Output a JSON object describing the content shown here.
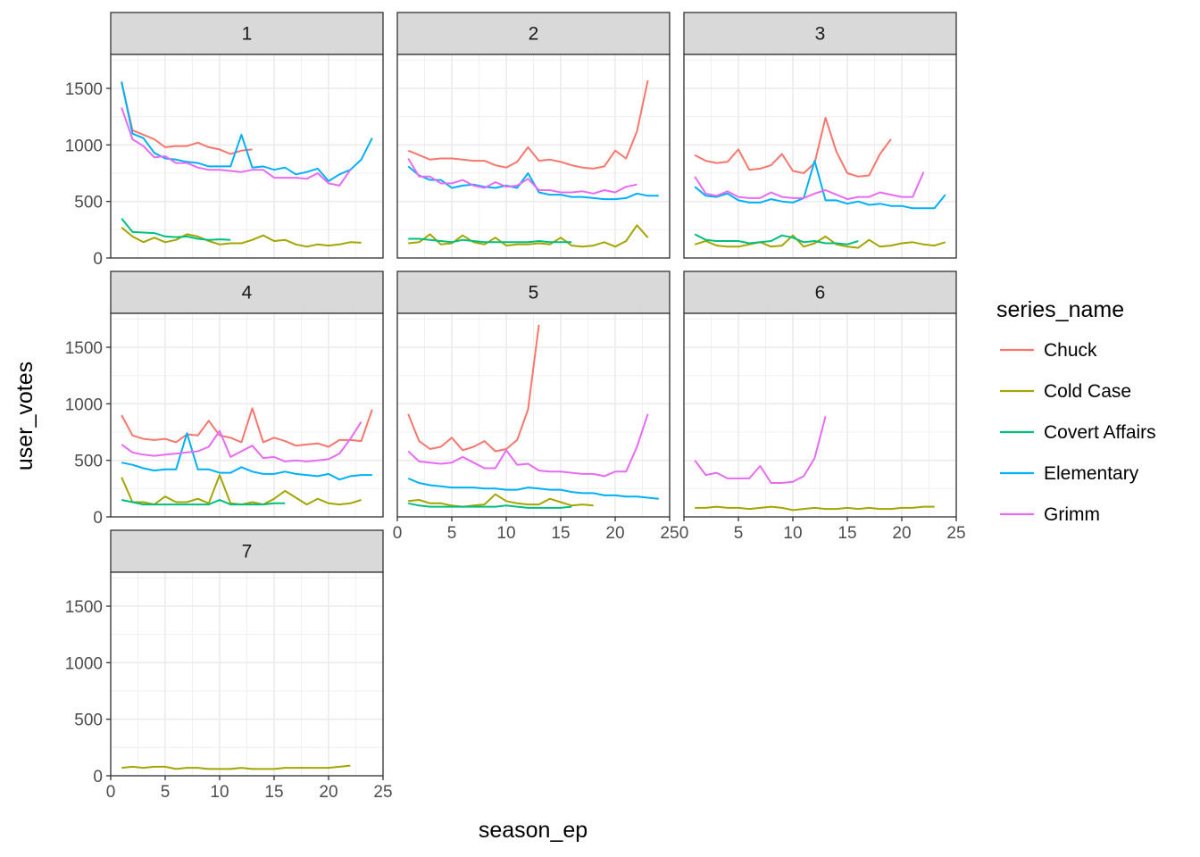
{
  "chart_data": {
    "type": "line",
    "xlabel": "season_ep",
    "ylabel": "user_votes",
    "xlim": [
      0,
      25
    ],
    "ylim": [
      0,
      1800
    ],
    "x_ticks": [
      0,
      5,
      10,
      15,
      20,
      25
    ],
    "x_tick_labels": [
      "0",
      "5",
      "10",
      "15",
      "20",
      "25"
    ],
    "y_ticks": [
      0,
      500,
      1000,
      1500
    ],
    "y_tick_labels": [
      "0",
      "500",
      "1000",
      "1500"
    ],
    "grid": true,
    "legend": {
      "title": "series_name",
      "position": "right",
      "entries": [
        "Chuck",
        "Cold Case",
        "Covert Affairs",
        "Elementary",
        "Grimm"
      ]
    },
    "colors": {
      "Chuck": "#F8766D",
      "Cold Case": "#A3A500",
      "Covert Affairs": "#00BF7D",
      "Elementary": "#00B0F6",
      "Grimm": "#E76BF3"
    },
    "panels": [
      {
        "label": "1",
        "series": [
          {
            "name": "Chuck",
            "values": [
              1550,
              1130,
              1090,
              1050,
              980,
              990,
              990,
              1020,
              980,
              960,
              920,
              950,
              960
            ]
          },
          {
            "name": "Cold Case",
            "values": [
              270,
              190,
              140,
              180,
              140,
              160,
              210,
              190,
              150,
              120,
              130,
              130,
              160,
              200,
              150,
              160,
              120,
              100,
              120,
              110,
              120,
              140,
              135
            ]
          },
          {
            "name": "Covert Affairs",
            "values": [
              350,
              230,
              225,
              220,
              190,
              185,
              190,
              170,
              160,
              165,
              160
            ]
          },
          {
            "name": "Elementary",
            "values": [
              1560,
              1100,
              1060,
              930,
              880,
              870,
              850,
              840,
              810,
              810,
              810,
              1090,
              800,
              810,
              780,
              800,
              740,
              760,
              790,
              680,
              740,
              780,
              870,
              1060
            ]
          },
          {
            "name": "Grimm",
            "values": [
              1330,
              1050,
              990,
              890,
              900,
              840,
              840,
              800,
              780,
              780,
              770,
              760,
              780,
              780,
              710,
              710,
              710,
              700,
              750,
              660,
              640,
              780
            ]
          }
        ]
      },
      {
        "label": "2",
        "series": [
          {
            "name": "Chuck",
            "values": [
              950,
              910,
              870,
              880,
              880,
              870,
              860,
              860,
              820,
              800,
              850,
              980,
              860,
              870,
              850,
              820,
              800,
              790,
              810,
              950,
              880,
              1120,
              1570
            ]
          },
          {
            "name": "Cold Case",
            "values": [
              130,
              140,
              210,
              120,
              130,
              200,
              140,
              120,
              180,
              110,
              120,
              120,
              130,
              120,
              180,
              110,
              100,
              110,
              140,
              100,
              150,
              290,
              180
            ]
          },
          {
            "name": "Covert Affairs",
            "values": [
              170,
              170,
              160,
              150,
              140,
              160,
              150,
              140,
              140,
              140,
              140,
              140,
              150,
              140,
              140,
              140
            ]
          },
          {
            "name": "Elementary",
            "values": [
              810,
              730,
              690,
              690,
              620,
              640,
              650,
              630,
              620,
              640,
              620,
              750,
              580,
              560,
              560,
              540,
              540,
              530,
              520,
              520,
              530,
              570,
              550,
              550
            ]
          },
          {
            "name": "Grimm",
            "values": [
              880,
              720,
              720,
              660,
              660,
              690,
              640,
              620,
              670,
              630,
              640,
              700,
              600,
              600,
              580,
              580,
              590,
              570,
              600,
              580,
              630,
              650
            ]
          }
        ]
      },
      {
        "label": "3",
        "series": [
          {
            "name": "Chuck",
            "values": [
              910,
              860,
              840,
              850,
              960,
              780,
              790,
              820,
              920,
              770,
              750,
              840,
              1240,
              940,
              750,
              720,
              730,
              920,
              1050
            ]
          },
          {
            "name": "Cold Case",
            "values": [
              120,
              150,
              110,
              100,
              100,
              120,
              140,
              100,
              110,
              200,
              100,
              130,
              190,
              120,
              100,
              90,
              160,
              100,
              110,
              130,
              140,
              120,
              110,
              140
            ]
          },
          {
            "name": "Covert Affairs",
            "values": [
              210,
              160,
              150,
              150,
              150,
              130,
              140,
              150,
              200,
              180,
              140,
              150,
              130,
              130,
              120,
              150
            ]
          },
          {
            "name": "Elementary",
            "values": [
              630,
              550,
              540,
              570,
              510,
              490,
              490,
              520,
              500,
              490,
              530,
              860,
              510,
              510,
              480,
              500,
              470,
              480,
              460,
              460,
              440,
              440,
              440,
              560
            ]
          },
          {
            "name": "Grimm",
            "values": [
              720,
              570,
              550,
              590,
              540,
              530,
              530,
              580,
              540,
              530,
              530,
              570,
              600,
              560,
              520,
              540,
              540,
              580,
              560,
              540,
              540,
              760
            ]
          }
        ]
      },
      {
        "label": "4",
        "series": [
          {
            "name": "Chuck",
            "values": [
              900,
              720,
              690,
              680,
              690,
              660,
              730,
              720,
              850,
              720,
              700,
              660,
              960,
              660,
              700,
              670,
              630,
              640,
              650,
              620,
              680,
              680,
              670,
              950
            ]
          },
          {
            "name": "Cold Case",
            "values": [
              350,
              130,
              130,
              110,
              180,
              130,
              130,
              160,
              120,
              370,
              120,
              110,
              130,
              110,
              160,
              230,
              170,
              110,
              160,
              120,
              110,
              120,
              150
            ]
          },
          {
            "name": "Covert Affairs",
            "values": [
              150,
              130,
              110,
              110,
              110,
              110,
              110,
              110,
              110,
              150,
              110,
              110,
              110,
              110,
              120,
              120
            ]
          },
          {
            "name": "Elementary",
            "values": [
              480,
              460,
              430,
              410,
              420,
              420,
              740,
              420,
              420,
              390,
              390,
              440,
              400,
              380,
              380,
              400,
              380,
              370,
              360,
              380,
              330,
              360,
              370,
              370
            ]
          },
          {
            "name": "Grimm",
            "values": [
              640,
              570,
              550,
              540,
              550,
              560,
              570,
              580,
              620,
              760,
              530,
              580,
              630,
              520,
              530,
              490,
              500,
              490,
              500,
              510,
              560,
              690,
              840
            ]
          }
        ]
      },
      {
        "label": "5",
        "series": [
          {
            "name": "Chuck",
            "values": [
              910,
              670,
              600,
              620,
              700,
              590,
              620,
              670,
              580,
              600,
              680,
              950,
              1700
            ]
          },
          {
            "name": "Cold Case",
            "values": [
              140,
              150,
              120,
              120,
              100,
              90,
              100,
              110,
              200,
              140,
              120,
              110,
              110,
              160,
              130,
              100,
              110,
              100
            ]
          },
          {
            "name": "Covert Affairs",
            "values": [
              120,
              100,
              90,
              90,
              90,
              90,
              90,
              90,
              90,
              100,
              90,
              80,
              80,
              80,
              80,
              90
            ]
          },
          {
            "name": "Elementary",
            "values": [
              340,
              300,
              280,
              270,
              260,
              260,
              260,
              250,
              250,
              240,
              240,
              260,
              250,
              240,
              240,
              220,
              210,
              210,
              190,
              190,
              180,
              180,
              170,
              160
            ]
          },
          {
            "name": "Grimm",
            "values": [
              580,
              490,
              480,
              470,
              480,
              530,
              480,
              430,
              430,
              590,
              460,
              470,
              410,
              400,
              400,
              390,
              380,
              380,
              360,
              400,
              400,
              620,
              910
            ]
          }
        ]
      },
      {
        "label": "6",
        "series": [
          {
            "name": "Cold Case",
            "values": [
              80,
              80,
              90,
              80,
              80,
              70,
              80,
              90,
              80,
              60,
              70,
              80,
              70,
              70,
              80,
              70,
              80,
              70,
              70,
              80,
              80,
              90,
              90
            ]
          },
          {
            "name": "Grimm",
            "values": [
              500,
              370,
              390,
              340,
              340,
              340,
              450,
              300,
              300,
              310,
              360,
              520,
              890
            ]
          }
        ]
      },
      {
        "label": "7",
        "series": [
          {
            "name": "Cold Case",
            "values": [
              70,
              80,
              70,
              80,
              80,
              60,
              70,
              70,
              60,
              60,
              60,
              70,
              60,
              60,
              60,
              70,
              70,
              70,
              70,
              70,
              80,
              90
            ]
          }
        ]
      }
    ]
  }
}
